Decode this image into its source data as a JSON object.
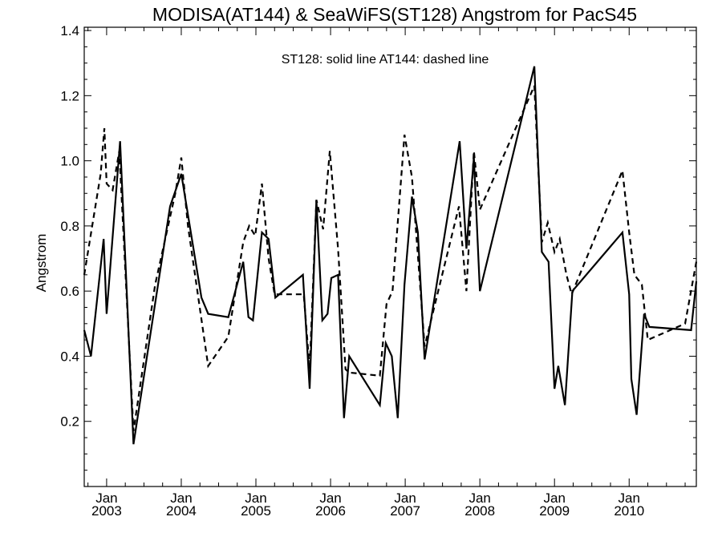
{
  "chart_data": {
    "type": "line",
    "title": "MODISA(AT144) & SeaWiFS(ST128)  Angstrom for PacS45",
    "ylabel": "Angstrom",
    "xlabel": "",
    "annotation": "ST128: solid line   AT144: dashed line",
    "ylim": [
      0.0,
      1.41
    ],
    "xlim": [
      2002.7,
      2010.9
    ],
    "y_ticks": [
      "0.2",
      "0.4",
      "0.6",
      "0.8",
      "1.0",
      "1.2",
      "1.4"
    ],
    "x_ticks": [
      {
        "month": "Jan",
        "year": "2003",
        "x": 2003.0
      },
      {
        "month": "Jan",
        "year": "2004",
        "x": 2004.0
      },
      {
        "month": "Jan",
        "year": "2005",
        "x": 2005.0
      },
      {
        "month": "Jan",
        "year": "2006",
        "x": 2006.0
      },
      {
        "month": "Jan",
        "year": "2007",
        "x": 2007.0
      },
      {
        "month": "Jan",
        "year": "2008",
        "x": 2008.0
      },
      {
        "month": "Jan",
        "year": "2009",
        "x": 2009.0
      },
      {
        "month": "Jan",
        "year": "2010",
        "x": 2010.0
      }
    ],
    "grid": false,
    "series": [
      {
        "name": "ST128",
        "style": "solid",
        "color": "#000000",
        "points": [
          [
            2002.7,
            0.48
          ],
          [
            2002.79,
            0.4
          ],
          [
            2002.96,
            0.76
          ],
          [
            2003.0,
            0.53
          ],
          [
            2003.18,
            1.06
          ],
          [
            2003.36,
            0.13
          ],
          [
            2003.85,
            0.86
          ],
          [
            2004.0,
            0.96
          ],
          [
            2004.27,
            0.58
          ],
          [
            2004.36,
            0.53
          ],
          [
            2004.63,
            0.52
          ],
          [
            2004.83,
            0.69
          ],
          [
            2004.9,
            0.52
          ],
          [
            2004.96,
            0.51
          ],
          [
            2005.08,
            0.78
          ],
          [
            2005.17,
            0.76
          ],
          [
            2005.26,
            0.58
          ],
          [
            2005.63,
            0.65
          ],
          [
            2005.72,
            0.3
          ],
          [
            2005.81,
            0.88
          ],
          [
            2005.89,
            0.51
          ],
          [
            2005.96,
            0.53
          ],
          [
            2006.01,
            0.64
          ],
          [
            2006.1,
            0.65
          ],
          [
            2006.18,
            0.21
          ],
          [
            2006.25,
            0.4
          ],
          [
            2006.66,
            0.25
          ],
          [
            2006.74,
            0.44
          ],
          [
            2006.82,
            0.4
          ],
          [
            2006.9,
            0.21
          ],
          [
            2006.99,
            0.62
          ],
          [
            2007.09,
            0.89
          ],
          [
            2007.17,
            0.78
          ],
          [
            2007.26,
            0.39
          ],
          [
            2007.73,
            1.06
          ],
          [
            2007.82,
            0.73
          ],
          [
            2007.92,
            1.01
          ],
          [
            2008.0,
            0.6
          ],
          [
            2008.73,
            1.29
          ],
          [
            2008.83,
            0.72
          ],
          [
            2008.92,
            0.69
          ],
          [
            2009.0,
            0.3
          ],
          [
            2009.05,
            0.37
          ],
          [
            2009.14,
            0.25
          ],
          [
            2009.24,
            0.6
          ],
          [
            2009.91,
            0.78
          ],
          [
            2010.0,
            0.59
          ],
          [
            2010.03,
            0.33
          ],
          [
            2010.1,
            0.22
          ],
          [
            2010.2,
            0.53
          ],
          [
            2010.27,
            0.49
          ],
          [
            2010.83,
            0.48
          ],
          [
            2010.9,
            0.63
          ]
        ]
      },
      {
        "name": "AT144",
        "style": "dashed",
        "color": "#000000",
        "points": [
          [
            2002.7,
            0.65
          ],
          [
            2002.92,
            0.96
          ],
          [
            2002.97,
            1.1
          ],
          [
            2003.0,
            0.93
          ],
          [
            2003.08,
            0.91
          ],
          [
            2003.17,
            1.03
          ],
          [
            2003.36,
            0.17
          ],
          [
            2003.65,
            0.62
          ],
          [
            2003.92,
            0.9
          ],
          [
            2004.0,
            1.01
          ],
          [
            2004.09,
            0.8
          ],
          [
            2004.36,
            0.37
          ],
          [
            2004.63,
            0.46
          ],
          [
            2004.83,
            0.75
          ],
          [
            2004.91,
            0.8
          ],
          [
            2004.99,
            0.77
          ],
          [
            2005.08,
            0.93
          ],
          [
            2005.17,
            0.7
          ],
          [
            2005.25,
            0.59
          ],
          [
            2005.64,
            0.59
          ],
          [
            2005.72,
            0.36
          ],
          [
            2005.81,
            0.88
          ],
          [
            2005.9,
            0.79
          ],
          [
            2005.99,
            1.03
          ],
          [
            2006.1,
            0.73
          ],
          [
            2006.2,
            0.36
          ],
          [
            2006.25,
            0.35
          ],
          [
            2006.66,
            0.34
          ],
          [
            2006.75,
            0.56
          ],
          [
            2006.83,
            0.6
          ],
          [
            2006.99,
            1.08
          ],
          [
            2007.09,
            0.95
          ],
          [
            2007.17,
            0.71
          ],
          [
            2007.26,
            0.43
          ],
          [
            2007.72,
            0.86
          ],
          [
            2007.82,
            0.6
          ],
          [
            2007.92,
            1.03
          ],
          [
            2008.0,
            0.85
          ],
          [
            2008.73,
            1.23
          ],
          [
            2008.83,
            0.75
          ],
          [
            2008.91,
            0.81
          ],
          [
            2009.0,
            0.72
          ],
          [
            2009.07,
            0.76
          ],
          [
            2009.16,
            0.65
          ],
          [
            2009.23,
            0.59
          ],
          [
            2009.91,
            0.97
          ],
          [
            2010.0,
            0.78
          ],
          [
            2010.07,
            0.65
          ],
          [
            2010.17,
            0.62
          ],
          [
            2010.25,
            0.45
          ],
          [
            2010.75,
            0.5
          ],
          [
            2010.9,
            0.69
          ]
        ]
      }
    ]
  }
}
